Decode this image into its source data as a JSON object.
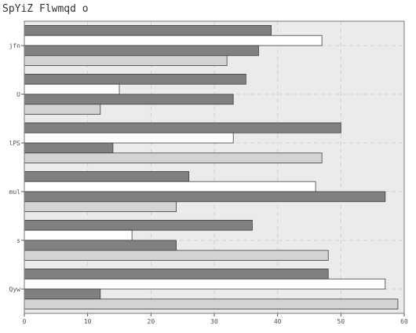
{
  "chart_data": {
    "type": "bar",
    "orientation": "horizontal",
    "title": "SpYiZ Flwmqd o",
    "xlabel": "",
    "ylabel": "",
    "categories": [
      "jfn",
      "U",
      "lPS",
      "mul",
      "s",
      "Qyw"
    ],
    "series": [
      {
        "color": "#808080",
        "values": [
          39,
          35,
          50,
          26,
          36,
          48
        ]
      },
      {
        "color": "#ffffff",
        "values": [
          47,
          15,
          33,
          46,
          17,
          57
        ]
      },
      {
        "color": "#808080",
        "values": [
          37,
          33,
          14,
          57,
          24,
          12
        ]
      },
      {
        "color": "#d3d3d3",
        "values": [
          32,
          12,
          47,
          24,
          48,
          59
        ]
      }
    ],
    "xlim": [
      0,
      60
    ],
    "xticks": [
      "0",
      "10",
      "20",
      "30",
      "40",
      "50",
      "60"
    ],
    "grid": true,
    "legend": "none",
    "background": "#ebebeb"
  }
}
